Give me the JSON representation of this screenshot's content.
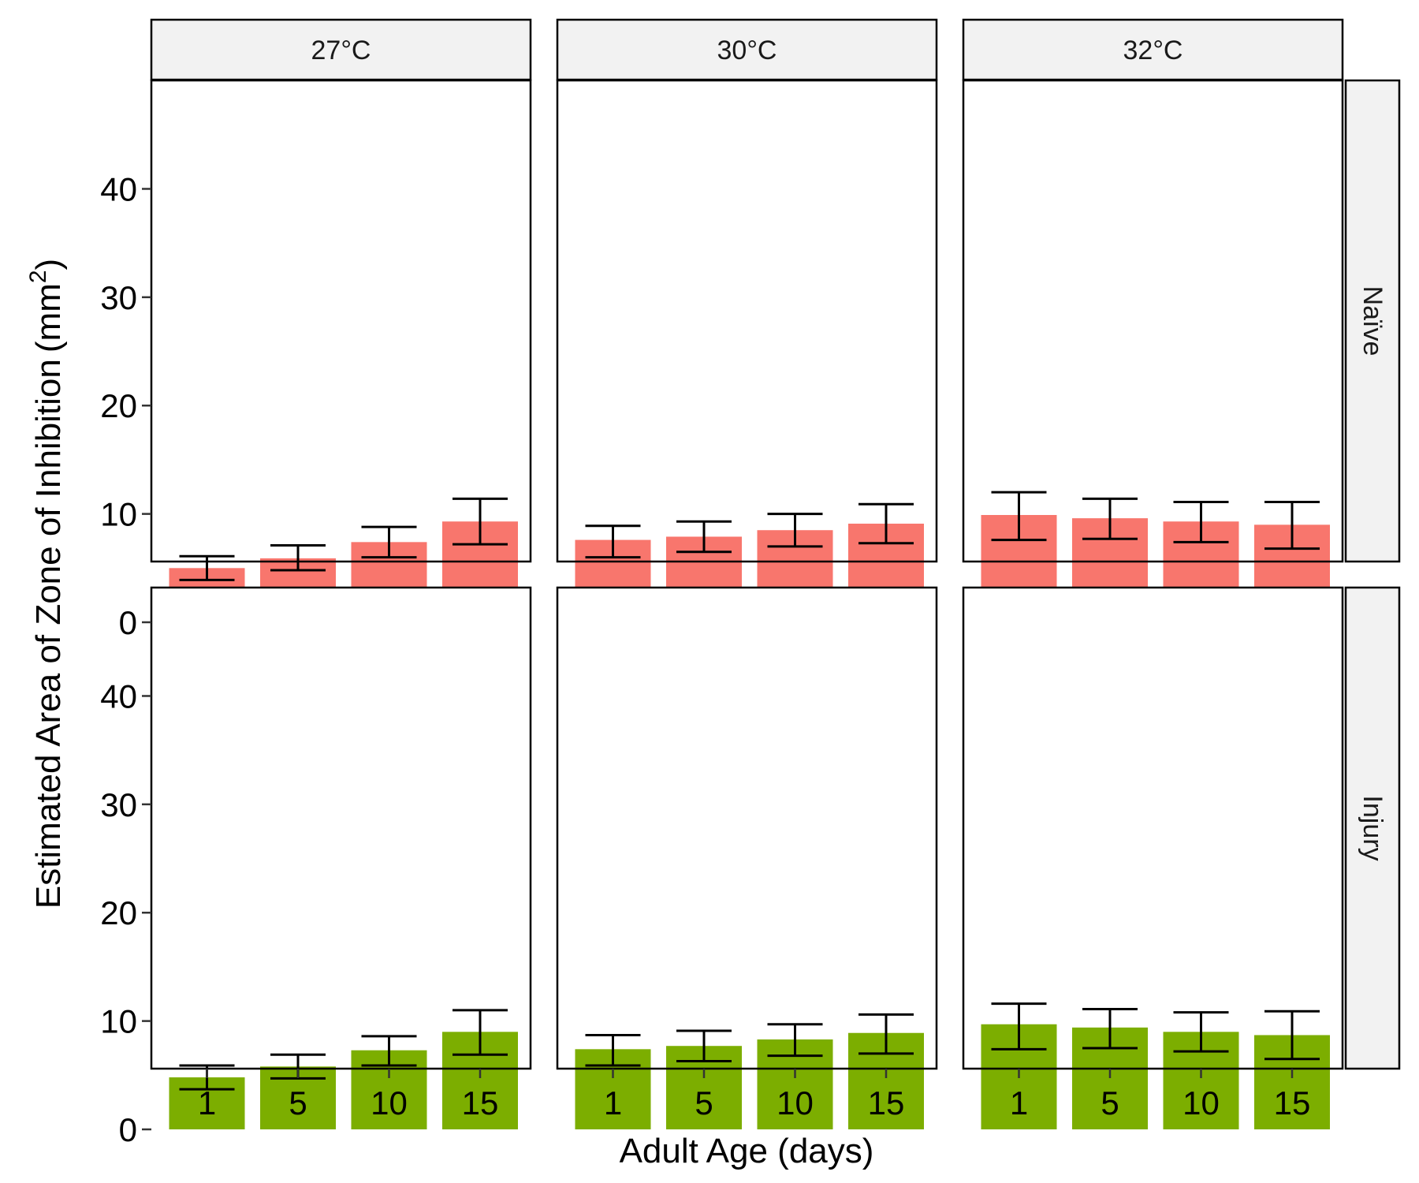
{
  "chart_data": {
    "type": "bar",
    "xlabel": "Adult Age (days)",
    "ylabel": {
      "main": "Estimated Area of Zone of Inhibition",
      "unit_open": "(",
      "unit": "mm",
      "unit_sup": "2",
      "unit_close": ")"
    },
    "ylim": [
      0,
      42
    ],
    "yticks": [
      0,
      10,
      20,
      30,
      40
    ],
    "categories": [
      "1",
      "5",
      "10",
      "15"
    ],
    "columns": [
      "27°C",
      "30°C",
      "32°C"
    ],
    "rows": [
      "Naïve",
      "Injury"
    ],
    "row_colors": {
      "Naïve": "#F8766D",
      "Injury": "#7CAE00"
    },
    "grid": false,
    "legend": "none",
    "panels": [
      {
        "row": "Naïve",
        "column": "27°C",
        "values": [
          5.0,
          5.9,
          7.4,
          9.3
        ],
        "error_low": [
          3.9,
          4.8,
          6.0,
          7.2
        ],
        "error_high": [
          6.1,
          7.1,
          8.8,
          11.4
        ]
      },
      {
        "row": "Naïve",
        "column": "30°C",
        "values": [
          7.6,
          7.9,
          8.5,
          9.1
        ],
        "error_low": [
          6.0,
          6.5,
          7.0,
          7.3
        ],
        "error_high": [
          8.9,
          9.3,
          10.0,
          10.9
        ]
      },
      {
        "row": "Naïve",
        "column": "32°C",
        "values": [
          9.9,
          9.6,
          9.3,
          9.0
        ],
        "error_low": [
          7.6,
          7.7,
          7.4,
          6.8
        ],
        "error_high": [
          12.0,
          11.4,
          11.1,
          11.1
        ]
      },
      {
        "row": "Injury",
        "column": "27°C",
        "values": [
          4.8,
          5.8,
          7.3,
          9.0
        ],
        "error_low": [
          3.7,
          4.7,
          5.9,
          6.9
        ],
        "error_high": [
          5.9,
          6.9,
          8.6,
          11.0
        ]
      },
      {
        "row": "Injury",
        "column": "30°C",
        "values": [
          7.4,
          7.7,
          8.3,
          8.9
        ],
        "error_low": [
          5.9,
          6.3,
          6.8,
          7.0
        ],
        "error_high": [
          8.7,
          9.1,
          9.7,
          10.6
        ]
      },
      {
        "row": "Injury",
        "column": "32°C",
        "values": [
          9.7,
          9.4,
          9.0,
          8.7
        ],
        "error_low": [
          7.4,
          7.5,
          7.2,
          6.5
        ],
        "error_high": [
          11.6,
          11.1,
          10.8,
          10.9
        ]
      }
    ]
  }
}
